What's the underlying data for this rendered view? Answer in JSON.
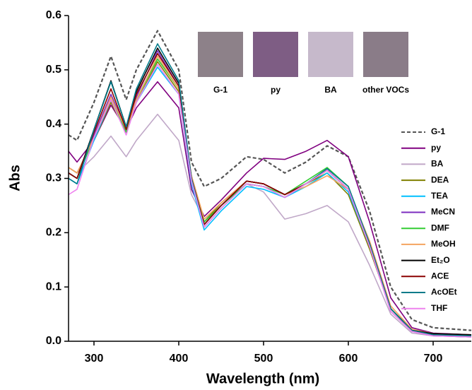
{
  "chart_data": {
    "type": "line",
    "xlabel": "Wavelength (nm)",
    "ylabel": "Abs",
    "xlim": [
      270,
      745
    ],
    "ylim": [
      0,
      0.6
    ],
    "xticks": [
      300,
      400,
      500,
      600,
      700
    ],
    "yticks": [
      {
        "value": 0,
        "label": "0.0"
      },
      0.1,
      0.2,
      0.3,
      0.4,
      0.5,
      0.6
    ],
    "insets": [
      {
        "label": "G-1",
        "color": "#8d8189"
      },
      {
        "label": "py",
        "color": "#7e5d84"
      },
      {
        "label": "BA",
        "color": "#c6b9cb"
      },
      {
        "label": "other VOCs",
        "color": "#8a7c88"
      }
    ],
    "x": [
      270,
      280,
      300,
      320,
      338,
      350,
      375,
      400,
      415,
      430,
      450,
      480,
      500,
      525,
      550,
      575,
      600,
      625,
      650,
      675,
      700,
      745
    ],
    "series": [
      {
        "name": "G-1",
        "color": "#555555",
        "line_style": "dashed",
        "values": [
          0.38,
          0.37,
          0.44,
          0.525,
          0.445,
          0.5,
          0.572,
          0.5,
          0.33,
          0.285,
          0.3,
          0.34,
          0.335,
          0.31,
          0.33,
          0.36,
          0.34,
          0.24,
          0.1,
          0.04,
          0.025,
          0.02
        ]
      },
      {
        "name": "py",
        "color": "#800080",
        "values": [
          0.35,
          0.33,
          0.37,
          0.435,
          0.39,
          0.43,
          0.478,
          0.43,
          0.28,
          0.23,
          0.26,
          0.31,
          0.337,
          0.335,
          0.35,
          0.37,
          0.34,
          0.22,
          0.08,
          0.025,
          0.015,
          0.012
        ]
      },
      {
        "name": "BA",
        "color": "#c0a8c8",
        "values": [
          0.32,
          0.31,
          0.34,
          0.378,
          0.34,
          0.37,
          0.418,
          0.37,
          0.27,
          0.225,
          0.25,
          0.29,
          0.275,
          0.225,
          0.235,
          0.25,
          0.22,
          0.14,
          0.05,
          0.015,
          0.01,
          0.008
        ]
      },
      {
        "name": "DEA",
        "color": "#808000",
        "values": [
          0.32,
          0.31,
          0.37,
          0.44,
          0.385,
          0.44,
          0.515,
          0.46,
          0.3,
          0.22,
          0.255,
          0.295,
          0.29,
          0.27,
          0.29,
          0.31,
          0.27,
          0.17,
          0.06,
          0.02,
          0.012,
          0.01
        ]
      },
      {
        "name": "TEA",
        "color": "#00bfff",
        "values": [
          0.3,
          0.29,
          0.37,
          0.445,
          0.385,
          0.44,
          0.505,
          0.455,
          0.29,
          0.205,
          0.24,
          0.285,
          0.28,
          0.265,
          0.285,
          0.31,
          0.275,
          0.175,
          0.06,
          0.02,
          0.012,
          0.01
        ]
      },
      {
        "name": "MeCN",
        "color": "#7b2cbf",
        "values": [
          0.31,
          0.3,
          0.38,
          0.455,
          0.39,
          0.45,
          0.535,
          0.47,
          0.3,
          0.215,
          0.25,
          0.295,
          0.29,
          0.27,
          0.29,
          0.315,
          0.28,
          0.175,
          0.055,
          0.018,
          0.01,
          0.008
        ]
      },
      {
        "name": "DMF",
        "color": "#33cc33",
        "values": [
          0.31,
          0.3,
          0.375,
          0.445,
          0.385,
          0.445,
          0.52,
          0.465,
          0.3,
          0.22,
          0.25,
          0.29,
          0.285,
          0.27,
          0.295,
          0.32,
          0.285,
          0.18,
          0.06,
          0.02,
          0.012,
          0.01
        ]
      },
      {
        "name": "MeOH",
        "color": "#f4a460",
        "values": [
          0.32,
          0.31,
          0.375,
          0.45,
          0.39,
          0.445,
          0.525,
          0.465,
          0.305,
          0.225,
          0.255,
          0.295,
          0.29,
          0.27,
          0.285,
          0.305,
          0.28,
          0.185,
          0.065,
          0.022,
          0.014,
          0.012
        ]
      },
      {
        "name": "Et₂O",
        "color": "#000000",
        "values": [
          0.31,
          0.3,
          0.39,
          0.48,
          0.395,
          0.46,
          0.54,
          0.475,
          0.3,
          0.215,
          0.25,
          0.295,
          0.29,
          0.27,
          0.29,
          0.315,
          0.28,
          0.18,
          0.06,
          0.02,
          0.014,
          0.012
        ]
      },
      {
        "name": "ACE",
        "color": "#8b0000",
        "values": [
          0.31,
          0.3,
          0.385,
          0.465,
          0.39,
          0.455,
          0.53,
          0.47,
          0.3,
          0.215,
          0.25,
          0.295,
          0.29,
          0.27,
          0.29,
          0.315,
          0.28,
          0.18,
          0.06,
          0.02,
          0.012,
          0.01
        ]
      },
      {
        "name": "AcOEt",
        "color": "#007b8a",
        "values": [
          0.3,
          0.29,
          0.39,
          0.478,
          0.395,
          0.465,
          0.548,
          0.48,
          0.3,
          0.21,
          0.245,
          0.29,
          0.285,
          0.265,
          0.29,
          0.318,
          0.285,
          0.18,
          0.06,
          0.02,
          0.012,
          0.01
        ]
      },
      {
        "name": "THF",
        "color": "#ee82ee",
        "values": [
          0.27,
          0.28,
          0.375,
          0.445,
          0.38,
          0.44,
          0.51,
          0.455,
          0.295,
          0.21,
          0.245,
          0.29,
          0.285,
          0.265,
          0.29,
          0.315,
          0.28,
          0.175,
          0.055,
          0.018,
          0.01,
          0.008
        ]
      }
    ]
  }
}
